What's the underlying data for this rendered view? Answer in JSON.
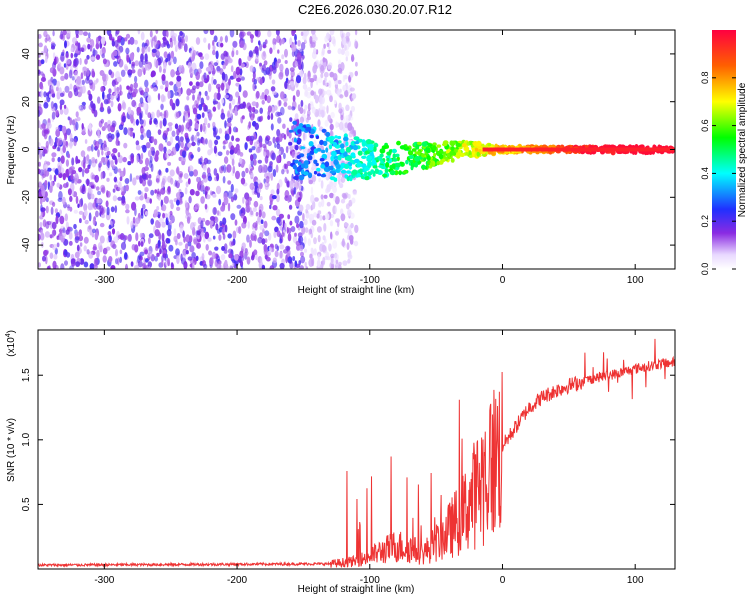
{
  "title": "C2E6.2026.030.20.07.R12",
  "chart_data": [
    {
      "type": "heatmap",
      "name": "spectrogram",
      "xlabel": "Height of straight line (km)",
      "ylabel": "Frequency (Hz)",
      "xlim": [
        -350,
        130
      ],
      "ylim": [
        -50,
        50
      ],
      "xticks": [
        -300,
        -200,
        -100,
        0,
        100
      ],
      "yticks": [
        -40,
        -20,
        0,
        20,
        40
      ],
      "xtick_labels": [
        "-300",
        "-200",
        "-100",
        "0",
        "100"
      ],
      "ytick_labels": [
        "-40",
        "-20",
        "0",
        "20",
        "40"
      ],
      "colorbar": {
        "label": "Normalized spectral amplitude",
        "range": [
          0,
          1
        ],
        "ticks": [
          0.0,
          0.2,
          0.4,
          0.6,
          0.8
        ],
        "tick_labels": [
          "0.0",
          "0.2",
          "0.4",
          "0.6",
          "0.8"
        ]
      },
      "description_points": {
        "noise_region_x": [
          -350,
          -120
        ],
        "signal_onset_x": -160,
        "carrier_freq_hz": 0,
        "signal_spread_hz": [
          -12,
          12
        ]
      }
    },
    {
      "type": "line",
      "name": "snr",
      "xlabel": "Height of straight line (km)",
      "ylabel": "SNR (10 * v/v)",
      "scale_label": "(x10",
      "scale_exp": "4",
      "xlim": [
        -350,
        130
      ],
      "ylim": [
        0,
        1.85
      ],
      "xticks": [
        -300,
        -200,
        -100,
        0,
        100
      ],
      "yticks": [
        0.5,
        1.0,
        1.5
      ],
      "xtick_labels": [
        "-300",
        "-200",
        "-100",
        "0",
        "100"
      ],
      "ytick_labels": [
        "0.5",
        "1.0",
        "1.5"
      ],
      "color": "#ee3333",
      "envelope": {
        "x": [
          -350,
          -130,
          -110,
          -100,
          -90,
          -80,
          -70,
          -60,
          -50,
          -40,
          -30,
          -20,
          -10,
          0,
          10,
          20,
          30,
          40,
          50,
          60,
          70,
          80,
          90,
          100,
          110,
          120,
          130
        ],
        "y": [
          0.03,
          0.04,
          0.06,
          0.1,
          0.14,
          0.18,
          0.16,
          0.12,
          0.2,
          0.3,
          0.42,
          0.6,
          0.78,
          0.95,
          1.1,
          1.25,
          1.33,
          1.38,
          1.42,
          1.45,
          1.48,
          1.5,
          1.52,
          1.55,
          1.57,
          1.59,
          1.6
        ]
      }
    }
  ]
}
